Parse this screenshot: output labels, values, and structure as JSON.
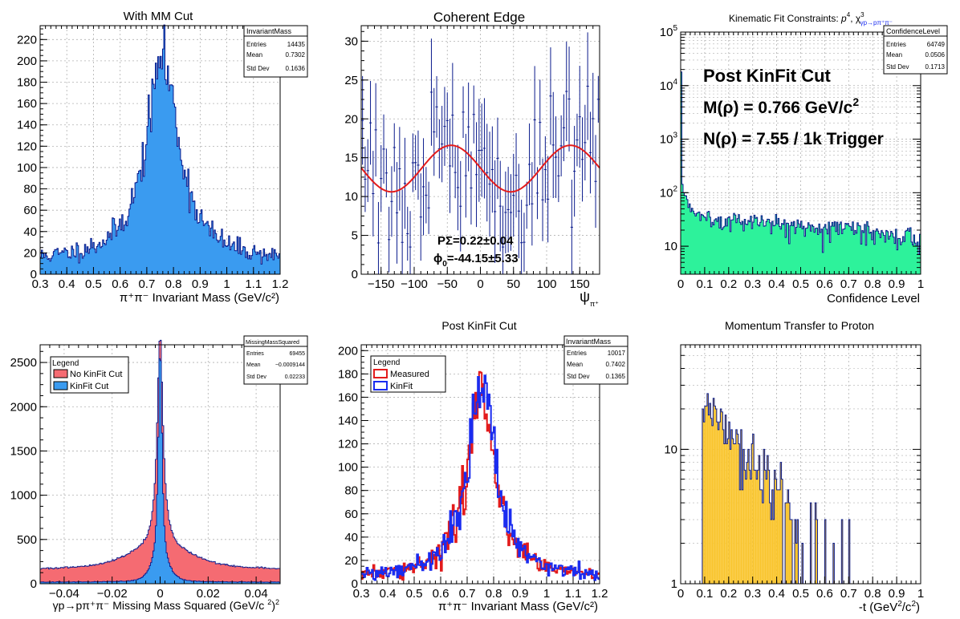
{
  "colors": {
    "frame": "#000000",
    "grid": "#b0b0b0",
    "dark_blue": "#0a1a8c",
    "fill_blue": "#3a9bf0",
    "fill_red": "#f56b72",
    "fill_green": "#2df29b",
    "fill_yellow": "#f9c52e",
    "red": "#e31b1b",
    "blue": "#1a2cf0"
  },
  "chart_data": [
    {
      "id": "p1",
      "type": "bar",
      "title": "With MM Cut",
      "xlabel": "π⁺π⁻ Invariant Mass (GeV/c²)",
      "ylabel": "",
      "xlim": [
        0.3,
        1.2
      ],
      "ylim": [
        0,
        233
      ],
      "xticks": [
        0.3,
        0.4,
        0.5,
        0.6,
        0.7,
        0.8,
        0.9,
        1,
        1.1,
        1.2
      ],
      "xtick_labels": [
        "0.3",
        "0.4",
        "0.5",
        "0.6",
        "0.7",
        "0.8",
        "0.9",
        "1",
        "1.1",
        "1.2"
      ],
      "yticks": [
        0,
        20,
        40,
        60,
        80,
        100,
        120,
        140,
        160,
        180,
        200,
        220
      ],
      "ytick_labels": [
        "0",
        "20",
        "40",
        "60",
        "80",
        "100",
        "120",
        "140",
        "160",
        "180",
        "200",
        "220"
      ],
      "grid": true,
      "stats": {
        "title": "InvariantMass",
        "entries": "14435",
        "mean": "0.7302",
        "std_dev": "0.1636"
      },
      "series": [
        {
          "shape": "breit_wigner",
          "center": 0.762,
          "width": 0.15,
          "peak": 200,
          "background": 12,
          "x_range": [
            0.3,
            1.2
          ],
          "nbins": 200,
          "fill_color": "#3a9bf0",
          "line_color": "#0a1a8c",
          "notes": "Histogram rising from ~15 at 0.3 GeV to a peak of ~225 at 0.765 GeV, falling to ~15 at 1.2 GeV."
        }
      ]
    },
    {
      "id": "p2",
      "type": "scatter",
      "title": "Coherent Edge",
      "xlabel": "ψπ⁺",
      "xlabel_main": "ψ",
      "xlabel_sub": "π⁺",
      "ylabel": "",
      "xlim": [
        -180,
        180
      ],
      "ylim": [
        0,
        32
      ],
      "xticks": [
        -150,
        -100,
        -50,
        0,
        50,
        100,
        150
      ],
      "xtick_labels": [
        "−150",
        "−100",
        "−50",
        "0",
        "50",
        "100",
        "150"
      ],
      "yticks": [
        0,
        5,
        10,
        15,
        20,
        25,
        30
      ],
      "ytick_labels": [
        "0",
        "5",
        "10",
        "15",
        "20",
        "25",
        "30"
      ],
      "grid": true,
      "annotations": [
        "PΣ=0.22±0.04",
        "ϕ₀=-44.15±5.33"
      ],
      "annotation_1": "PΣ=0.22±0.04",
      "annotation_2_main": "ϕ",
      "annotation_2_sub": "0",
      "annotation_2_rest": "=-44.15±5.33",
      "fit": {
        "function": "A*(1 + PΣ*cos(2*(ψ - ϕ0)))",
        "A": 13.6,
        "P_sigma": 0.22,
        "phi0_deg": -44.15
      },
      "series": [
        {
          "name": "data",
          "nbins": 90,
          "x_range": [
            -180,
            180
          ],
          "mean": 13.6,
          "spread": 6,
          "error": 5,
          "notes": "Sparse data points with large vertical error bars scattered between about 4 and 31."
        }
      ]
    },
    {
      "id": "p3",
      "type": "bar",
      "title": "Kinematic Fit Constraints: p⁴, χ³γp→pπ⁺π⁻",
      "title_main": "Kinematic Fit Constraints: ",
      "title_p": "p",
      "title_p_sup": "4",
      "title_chi": ", χ",
      "title_chi_sup": "3",
      "title_chi_sub": "γp→pπ⁺π⁻",
      "xlabel": "Confidence Level",
      "ylabel": "",
      "log_y": true,
      "xlim": [
        0,
        1
      ],
      "ylim": [
        3,
        100000
      ],
      "xticks": [
        0,
        0.1,
        0.2,
        0.3,
        0.4,
        0.5,
        0.6,
        0.7,
        0.8,
        0.9,
        1
      ],
      "xtick_labels": [
        "0",
        "0.1",
        "0.2",
        "0.3",
        "0.4",
        "0.5",
        "0.6",
        "0.7",
        "0.8",
        "0.9",
        "1"
      ],
      "yticks": [
        10,
        100,
        1000,
        10000,
        100000
      ],
      "ytick_labels": [
        "10",
        "10",
        "10",
        "10",
        "10"
      ],
      "ytick_exps": [
        "",
        "2",
        "3",
        "4",
        "5"
      ],
      "grid": true,
      "stats": {
        "title": "ConfidenceLevel",
        "entries": "64749",
        "mean": "0.0506",
        "std_dev": "0.1713"
      },
      "annotations": [
        "Post KinFit Cut",
        "M(ρ) = 0.766 GeV/c²",
        "N(ρ) = 7.55 / 1k Trigger"
      ],
      "annotation_1": "Post KinFit Cut",
      "annotation_2_main": "M(ρ) = 0.766 GeV/c",
      "annotation_2_sup": "2",
      "annotation_3": "N(ρ) = 7.55 / 1k Trigger",
      "series": [
        {
          "shape": "exponential_plus_flat",
          "x_range": [
            0,
            1
          ],
          "nbins": 200,
          "first_bin": 18000,
          "plateau_start": 35,
          "plateau_end": 15,
          "fill_color": "#2df29b",
          "line_color": "#0a1a8c",
          "notes": "Huge spike (~2×10⁴) in the first bin, dropping quickly to ~30, then slowly declining to ~15 near 1."
        }
      ]
    },
    {
      "id": "p4",
      "type": "bar",
      "title": "",
      "xlabel": "γp→pπ⁺π⁻ Missing Mass Squared (GeV/c²)²",
      "xlabel_main": "γp→pπ⁺π⁻ Missing Mass Squared (GeV/c",
      "xlabel_mid": "2",
      "xlabel_close": ")",
      "xlabel_end": "2",
      "ylabel": "",
      "xlim": [
        -0.05,
        0.05
      ],
      "ylim": [
        0,
        2700
      ],
      "xticks": [
        -0.04,
        -0.02,
        0,
        0.02,
        0.04
      ],
      "xtick_labels": [
        "−0.04",
        "−0.02",
        "0",
        "0.02",
        "0.04"
      ],
      "yticks": [
        0,
        500,
        1000,
        1500,
        2000,
        2500
      ],
      "ytick_labels": [
        "0",
        "500",
        "1000",
        "1500",
        "2000",
        "2500"
      ],
      "grid": true,
      "stats": {
        "title": "MissingMassSquared",
        "entries": "69455",
        "mean": "−0.0009144",
        "std_dev": "0.02233"
      },
      "legend": {
        "title": "Legend",
        "entries": [
          "No KinFit Cut",
          "KinFit Cut"
        ]
      },
      "series": [
        {
          "name": "No KinFit Cut",
          "x_range": [
            -0.05,
            0.05
          ],
          "nbins": 200,
          "base": 200,
          "peak_height": 2400,
          "core_width": 0.0015,
          "shoulder_height": 200,
          "shoulder_width": 0.013,
          "fill_color": "#f56b72"
        },
        {
          "name": "KinFit Cut",
          "x_range": [
            -0.05,
            0.05
          ],
          "nbins": 200,
          "base": 20,
          "peak_height": 2580,
          "core_width": 0.0009,
          "shoulder_height": 120,
          "shoulder_width": 0.004,
          "fill_color": "#3a9bf0"
        }
      ]
    },
    {
      "id": "p5",
      "type": "line",
      "title": "Post KinFit Cut",
      "xlabel": "π⁺π⁻ Invariant Mass (GeV/c²)",
      "ylabel": "",
      "xlim": [
        0.3,
        1.2
      ],
      "ylim": [
        0,
        205
      ],
      "xticks": [
        0.3,
        0.4,
        0.5,
        0.6,
        0.7,
        0.8,
        0.9,
        1,
        1.1,
        1.2
      ],
      "xtick_labels": [
        "0.3",
        "0.4",
        "0.5",
        "0.6",
        "0.7",
        "0.8",
        "0.9",
        "1",
        "1.1",
        "1.2"
      ],
      "yticks": [
        0,
        20,
        40,
        60,
        80,
        100,
        120,
        140,
        160,
        180,
        200
      ],
      "ytick_labels": [
        "0",
        "20",
        "40",
        "60",
        "80",
        "100",
        "120",
        "140",
        "160",
        "180",
        "200"
      ],
      "grid": true,
      "stats": {
        "title": "InvariantMass",
        "entries": "10017",
        "mean": "0.7402",
        "std_dev": "0.1365"
      },
      "legend": {
        "title": "Legend",
        "entries": [
          "Measured",
          "KinFit"
        ]
      },
      "series": [
        {
          "name": "Measured",
          "shape": "breit_wigner",
          "center": 0.752,
          "width": 0.13,
          "peak": 160,
          "background": 5,
          "x_range": [
            0.3,
            1.2
          ],
          "nbins": 180,
          "line_color": "#e31b1b"
        },
        {
          "name": "KinFit",
          "shape": "breit_wigner",
          "center": 0.755,
          "width": 0.125,
          "peak": 168,
          "background": 5,
          "x_range": [
            0.3,
            1.2
          ],
          "nbins": 180,
          "line_color": "#1a2cf0"
        }
      ]
    },
    {
      "id": "p6",
      "type": "bar",
      "title": "Momentum Transfer to Proton",
      "xlabel": "-t (GeV²/c²)",
      "xlabel_main": "-t (GeV",
      "xlabel_sup1": "2",
      "xlabel_mid": "/c",
      "xlabel_sup2": "2",
      "xlabel_close": ")",
      "ylabel": "",
      "log_y": true,
      "xlim": [
        0,
        1
      ],
      "ylim": [
        1,
        60
      ],
      "xticks": [
        0,
        0.1,
        0.2,
        0.3,
        0.4,
        0.5,
        0.6,
        0.7,
        0.8,
        0.9,
        1
      ],
      "xtick_labels": [
        "0",
        "0.1",
        "0.2",
        "0.3",
        "0.4",
        "0.5",
        "0.6",
        "0.7",
        "0.8",
        "0.9",
        "1"
      ],
      "yticks": [
        1,
        10
      ],
      "ytick_labels": [
        "1",
        "10"
      ],
      "grid": true,
      "series": [
        {
          "shape": "rise_then_exponential",
          "x_range": [
            0,
            1
          ],
          "nbins": 200,
          "onset": 0.09,
          "peak": 25,
          "decay": 5.5,
          "cutoff": 0.76,
          "fill_color": "#f9c52e",
          "line_color": "#0a1a8c",
          "notes": "Empty below 0.09, jumps to ~20-30, decays to a few counts by 0.5, sporadic single counts up to ~0.75, empty after."
        }
      ]
    }
  ]
}
